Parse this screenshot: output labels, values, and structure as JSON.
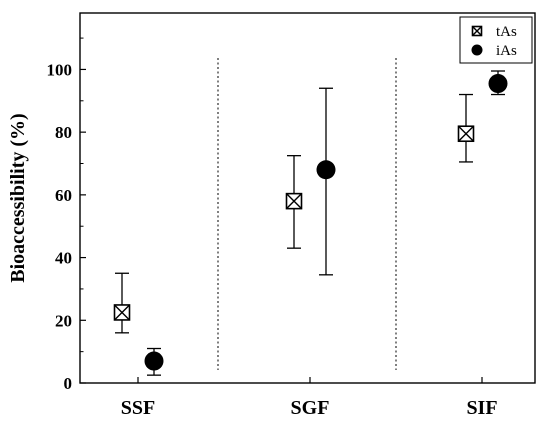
{
  "chart_data": {
    "type": "scatter",
    "title": "",
    "xlabel": "",
    "ylabel": "Bioaccessibility (%)",
    "categories": [
      "SSF",
      "SGF",
      "SIF"
    ],
    "ylim": [
      0,
      118
    ],
    "yticks": [
      0,
      20,
      40,
      60,
      80,
      100
    ],
    "grid": false,
    "legend_position": "top-right",
    "separators": "dotted vertical lines between categories",
    "series": [
      {
        "name": "tAs",
        "marker": "boxed-x",
        "values": [
          22.5,
          58,
          79.5
        ],
        "err_low": [
          16,
          43,
          70.5
        ],
        "err_high": [
          35,
          72.5,
          92
        ]
      },
      {
        "name": "iAs",
        "marker": "filled-circle",
        "values": [
          7,
          68,
          95.5
        ],
        "err_low": [
          2.5,
          34.5,
          92
        ],
        "err_high": [
          11,
          94,
          99.5
        ]
      }
    ]
  }
}
